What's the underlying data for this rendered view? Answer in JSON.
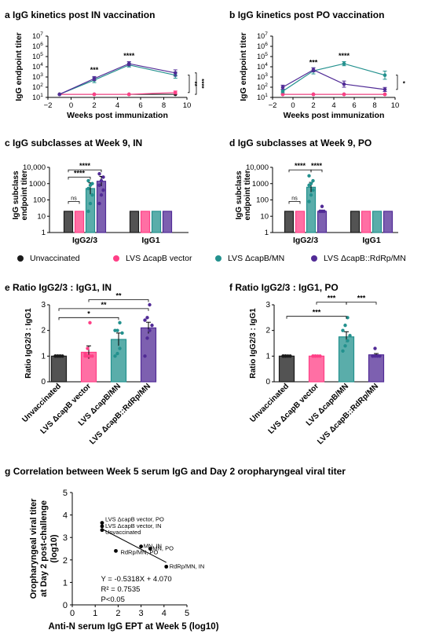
{
  "colors": {
    "unvaccinated": "#1a1a1a",
    "vector": "#ff3f86",
    "mn": "#23918e",
    "rdrp": "#512b96"
  },
  "panels": {
    "a": {
      "label": "a",
      "title": "IgG kinetics post IN vaccination"
    },
    "b": {
      "label": "b",
      "title": "IgG kinetics post PO vaccination"
    },
    "c": {
      "label": "c",
      "title": "IgG subclasses at Week 9, IN"
    },
    "d": {
      "label": "d",
      "title": "IgG subclasses at Week 9, PO"
    },
    "e": {
      "label": "e",
      "title": "Ratio IgG2/3 : IgG1, IN"
    },
    "f": {
      "label": "f",
      "title": "Ratio IgG2/3 : IgG1, PO"
    },
    "g": {
      "label": "g",
      "title": "Correlation between Week 5 serum IgG and Day 2 oropharyngeal viral titer"
    }
  },
  "legend": [
    {
      "key": "unvaccinated",
      "label": "Unvaccinated"
    },
    {
      "key": "vector",
      "label": "LVS ΔcapB vector"
    },
    {
      "key": "mn",
      "label": "LVS ΔcapB/MN"
    },
    {
      "key": "rdrp",
      "label": "LVS ΔcapB::RdRp/MN"
    }
  ],
  "chart_data": [
    {
      "id": "a",
      "type": "line",
      "log_y": true,
      "xlabel": "Weeks post immunization",
      "ylabel": "IgG endpoint titer",
      "xlim": [
        -2,
        10
      ],
      "ylim": [
        10,
        10000000
      ],
      "x_ticks": [
        "−2",
        "0",
        "2",
        "4",
        "6",
        "8",
        "10"
      ],
      "y_ticks": [
        {
          "base": "10",
          "exp": "1"
        },
        {
          "base": "10",
          "exp": "2"
        },
        {
          "base": "10",
          "exp": "3"
        },
        {
          "base": "10",
          "exp": "4"
        },
        {
          "base": "10",
          "exp": "5"
        },
        {
          "base": "10",
          "exp": "6"
        },
        {
          "base": "10",
          "exp": "7"
        }
      ],
      "series": [
        {
          "key": "unvaccinated",
          "x": [
            -1,
            2,
            5,
            9
          ],
          "y": [
            20,
            20,
            20,
            20
          ],
          "err": [
            0,
            0,
            0,
            0
          ]
        },
        {
          "key": "vector",
          "x": [
            -1,
            2,
            5,
            9
          ],
          "y": [
            20,
            20,
            20,
            30
          ],
          "err": [
            0,
            0,
            0,
            0.15
          ]
        },
        {
          "key": "mn",
          "x": [
            -1,
            2,
            5,
            9
          ],
          "y": [
            20,
            500,
            15000,
            1500
          ],
          "err": [
            0,
            0.25,
            0.2,
            0.3
          ]
        },
        {
          "key": "rdrp",
          "x": [
            -1,
            2,
            5,
            9
          ],
          "y": [
            20,
            700,
            20000,
            2500
          ],
          "err": [
            0,
            0.2,
            0.2,
            0.3
          ]
        }
      ],
      "annotations": [
        {
          "x": 2,
          "y": 3000,
          "text": "***"
        },
        {
          "x": 5,
          "y": 70000,
          "text": "****"
        }
      ],
      "side_brackets": [
        {
          "y1": 30,
          "y2": 1500,
          "text": "**"
        },
        {
          "y1": 20,
          "y2": 2500,
          "text": "****"
        }
      ]
    },
    {
      "id": "b",
      "type": "line",
      "log_y": true,
      "xlabel": "Weeks post immunization",
      "ylabel": "IgG endpoint titer",
      "xlim": [
        -2,
        10
      ],
      "ylim": [
        10,
        10000000
      ],
      "x_ticks": [
        "−2",
        "0",
        "2",
        "4",
        "6",
        "8",
        "10"
      ],
      "y_ticks": [
        {
          "base": "10",
          "exp": "1"
        },
        {
          "base": "10",
          "exp": "2"
        },
        {
          "base": "10",
          "exp": "3"
        },
        {
          "base": "10",
          "exp": "4"
        },
        {
          "base": "10",
          "exp": "5"
        },
        {
          "base": "10",
          "exp": "6"
        },
        {
          "base": "10",
          "exp": "7"
        }
      ],
      "series": [
        {
          "key": "unvaccinated",
          "x": [
            -1,
            2,
            5,
            9
          ],
          "y": [
            20,
            20,
            20,
            20
          ],
          "err": [
            0,
            0,
            0,
            0
          ]
        },
        {
          "key": "vector",
          "x": [
            -1,
            2,
            5,
            9
          ],
          "y": [
            20,
            20,
            20,
            20
          ],
          "err": [
            0,
            0,
            0,
            0
          ]
        },
        {
          "key": "mn",
          "x": [
            -1,
            2,
            5,
            9
          ],
          "y": [
            40,
            4000,
            20000,
            1500
          ],
          "err": [
            0.15,
            0.3,
            0.2,
            0.4
          ]
        },
        {
          "key": "rdrp",
          "x": [
            -1,
            2,
            5,
            9
          ],
          "y": [
            100,
            5000,
            200,
            60
          ],
          "err": [
            0.2,
            0.2,
            0.3,
            0.2
          ]
        }
      ],
      "annotations": [
        {
          "x": 2,
          "y": 15000,
          "text": "***"
        },
        {
          "x": 5,
          "y": 70000,
          "text": "****"
        }
      ],
      "side_brackets": [
        {
          "y1": 60,
          "y2": 1500,
          "text": "*"
        }
      ]
    },
    {
      "id": "c",
      "type": "bar",
      "log_y": true,
      "ylabel": "IgG subclass endpoint titer",
      "ylim": [
        1,
        10000
      ],
      "y_ticks": [
        "1",
        "10",
        "100",
        "1000",
        "10,000"
      ],
      "groups": [
        "IgG2/3",
        "IgG1"
      ],
      "series": [
        {
          "key": "unvaccinated",
          "values": [
            20,
            20
          ],
          "err": [
            0,
            0
          ]
        },
        {
          "key": "vector",
          "values": [
            20,
            20
          ],
          "err": [
            0,
            0
          ]
        },
        {
          "key": "mn",
          "values": [
            500,
            20
          ],
          "err": [
            0.35,
            0
          ]
        },
        {
          "key": "rdrp",
          "values": [
            1400,
            20
          ],
          "err": [
            0.3,
            0
          ]
        }
      ],
      "points": [
        {
          "group": 0,
          "series": 2,
          "values": [
            20,
            60,
            200,
            500,
            800,
            1000,
            1500
          ]
        },
        {
          "group": 0,
          "series": 3,
          "values": [
            60,
            200,
            400,
            800,
            1500,
            2500,
            4000
          ]
        }
      ],
      "brackets": [
        {
          "from": 0,
          "to": 1,
          "y": 80,
          "text": "ns"
        },
        {
          "from": 0,
          "to": 2,
          "y": 2500,
          "text": "****"
        },
        {
          "from": 0,
          "to": 3,
          "y": 7000,
          "text": "****"
        }
      ]
    },
    {
      "id": "d",
      "type": "bar",
      "log_y": true,
      "ylabel": "IgG subclass endpoint titer",
      "ylim": [
        1,
        10000
      ],
      "y_ticks": [
        "1",
        "10",
        "100",
        "1000",
        "10,000"
      ],
      "groups": [
        "IgG2/3",
        "IgG1"
      ],
      "series": [
        {
          "key": "unvaccinated",
          "values": [
            20,
            20
          ],
          "err": [
            0,
            0
          ]
        },
        {
          "key": "vector",
          "values": [
            20,
            20
          ],
          "err": [
            0,
            0
          ]
        },
        {
          "key": "mn",
          "values": [
            600,
            20
          ],
          "err": [
            0.3,
            0
          ]
        },
        {
          "key": "rdrp",
          "values": [
            20,
            20
          ],
          "err": [
            0.05,
            0
          ]
        }
      ],
      "points": [
        {
          "group": 0,
          "series": 2,
          "values": [
            80,
            200,
            400,
            800,
            1000,
            1500,
            3000
          ]
        },
        {
          "group": 0,
          "series": 3,
          "values": [
            20,
            20,
            20,
            20,
            40
          ]
        }
      ],
      "brackets": [
        {
          "from": 0,
          "to": 1,
          "y": 80,
          "text": "ns"
        },
        {
          "from": 0,
          "to": 2,
          "y": 7000,
          "text": "****"
        },
        {
          "from": 2,
          "to": 3,
          "y": 7000,
          "text": "****"
        }
      ]
    },
    {
      "id": "e",
      "type": "bar",
      "ylabel": "Ratio IgG2/3 : IgG1",
      "ylim": [
        0,
        3
      ],
      "y_ticks": [
        "0",
        "1",
        "2",
        "3"
      ],
      "categories": [
        "Unvaccinated",
        "LVS ΔcapB vector",
        "LVS ΔcapB/MN",
        "LVS ΔcapB::RdRp/MN"
      ],
      "series_keys": [
        "unvaccinated",
        "vector",
        "mn",
        "rdrp"
      ],
      "values": [
        1.0,
        1.15,
        1.65,
        2.1
      ],
      "err": [
        0,
        0.25,
        0.25,
        0.22
      ],
      "points": [
        [
          1,
          1,
          1,
          1,
          1,
          1,
          1
        ],
        [
          1,
          1,
          1,
          1,
          1.1,
          1.3,
          2.3
        ],
        [
          1,
          1.1,
          1.3,
          1.9,
          2.0,
          2.0,
          2.3
        ],
        [
          1,
          1.7,
          2.0,
          2.2,
          2.4,
          2.5,
          3.0
        ]
      ],
      "brackets": [
        {
          "from": 0,
          "to": 2,
          "y": 2.5,
          "text": "*"
        },
        {
          "from": 0,
          "to": 3,
          "y": 2.85,
          "text": "**"
        },
        {
          "from": 1,
          "to": 3,
          "y": 3.2,
          "text": "**"
        }
      ]
    },
    {
      "id": "f",
      "type": "bar",
      "ylabel": "Ratio IgG2/3 : IgG1",
      "ylim": [
        0,
        3
      ],
      "y_ticks": [
        "0",
        "1",
        "2",
        "3"
      ],
      "categories": [
        "Unvaccinated",
        "LVS ΔcapB vector",
        "LVS ΔcapB/MN",
        "LVS ΔcapB::RdRp/MN"
      ],
      "series_keys": [
        "unvaccinated",
        "vector",
        "mn",
        "rdrp"
      ],
      "values": [
        1.0,
        1.0,
        1.75,
        1.05
      ],
      "err": [
        0,
        0,
        0.2,
        0.05
      ],
      "points": [
        [
          1,
          1,
          1,
          1,
          1,
          1
        ],
        [
          1,
          1,
          1,
          1,
          1,
          1
        ],
        [
          1.2,
          1.4,
          1.6,
          1.8,
          2.0,
          2.2,
          2.5
        ],
        [
          1,
          1,
          1,
          1,
          1,
          1.3
        ]
      ],
      "brackets": [
        {
          "from": 0,
          "to": 2,
          "y": 2.55,
          "text": "***"
        },
        {
          "from": 1,
          "to": 2,
          "y": 3.1,
          "text": "***"
        },
        {
          "from": 2,
          "to": 3,
          "y": 3.1,
          "text": "***"
        }
      ]
    },
    {
      "id": "g",
      "type": "scatter",
      "xlabel": "Anti-N serum IgG EPT at Week 5 (log10)",
      "ylabel_lines": [
        "Oropharyngeal viral titer",
        "at Day 2 post-challenge",
        "(log10)"
      ],
      "xlim": [
        0,
        5
      ],
      "ylim": [
        0,
        5
      ],
      "x_ticks": [
        "0",
        "1",
        "2",
        "3",
        "4",
        "5"
      ],
      "y_ticks": [
        "0",
        "1",
        "2",
        "3",
        "4",
        "5"
      ],
      "points": [
        {
          "x": 1.3,
          "y": 3.65,
          "label": "LVS ΔcapB vector, PO"
        },
        {
          "x": 1.3,
          "y": 3.5,
          "label": "LVS ΔcapB vector, IN"
        },
        {
          "x": 1.3,
          "y": 3.33,
          "label": "Unvaccinated"
        },
        {
          "x": 3.0,
          "y": 2.6,
          "label": "MN, IN"
        },
        {
          "x": 3.4,
          "y": 2.5,
          "label": "MN, PO"
        },
        {
          "x": 1.9,
          "y": 2.4,
          "label": "RdRp/MN, PO"
        },
        {
          "x": 4.1,
          "y": 1.7,
          "label": "RdRp/MN, IN"
        }
      ],
      "fit": {
        "slope": -0.5318,
        "intercept": 4.07,
        "x_range": [
          1.3,
          4.1
        ]
      },
      "stats_lines": [
        "Y = -0.5318X + 4.070",
        "R² = 0.7535",
        "P<0.05"
      ]
    }
  ]
}
